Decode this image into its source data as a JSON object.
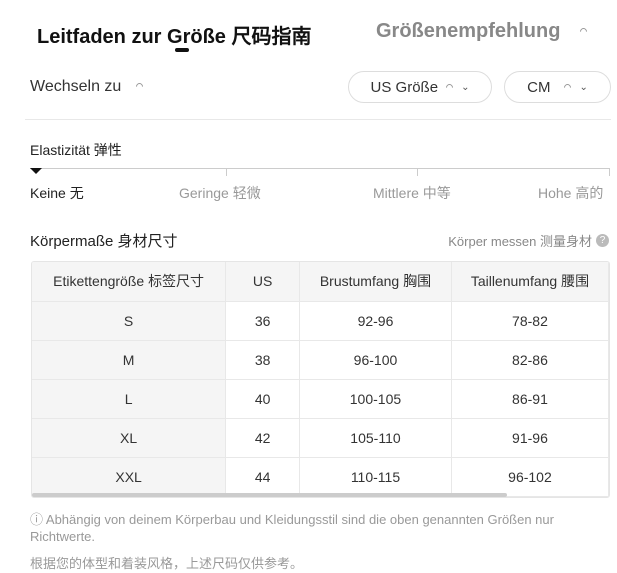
{
  "tabs": [
    {
      "label": "Leitfaden zur Größe  尺码指南",
      "active": true
    },
    {
      "label": "Größenempfehlung",
      "active": false
    }
  ],
  "switch_label": "Wechseln zu",
  "size_system": {
    "value": "US Größe"
  },
  "unit": {
    "value": "CM"
  },
  "elasticity": {
    "label": "Elastizität  弹性",
    "levels": [
      "Keine  无",
      "Geringe  轻微",
      "Mittlere  中等",
      "Hohe  高的"
    ],
    "selected": "Keine  无"
  },
  "body": {
    "title": "Körpermaße  身材尺寸",
    "measure_link": "Körper messen  测量身材",
    "help_icon": "?"
  },
  "table": {
    "headers": [
      "Etikettengröße  标签尺寸",
      "US",
      "Brustumfang  胸围",
      "Taillenumfang  腰围"
    ],
    "rows": [
      [
        "S",
        "36",
        "92-96",
        "78-82"
      ],
      [
        "M",
        "38",
        "96-100",
        "82-86"
      ],
      [
        "L",
        "40",
        "100-105",
        "86-91"
      ],
      [
        "XL",
        "42",
        "105-110",
        "91-96"
      ],
      [
        "XXL",
        "44",
        "110-115",
        "96-102"
      ]
    ]
  },
  "note": "ⓘ Abhängig von deinem Körperbau und Kleidungsstil sind die oben genannten Größen nur Richtwerte.",
  "note_cn": "根据您的体型和着装风格，上述尺码仅供参考。"
}
